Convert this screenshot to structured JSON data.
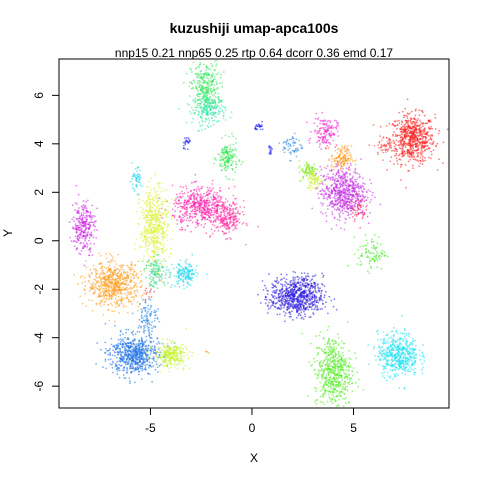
{
  "chart_data": {
    "type": "scatter",
    "title": "kuzushiji umap-apca100s",
    "subtitle": "nnp15 0.21 nnp65 0.25 rtp 0.64 dcorr 0.36 emd 0.17",
    "xlabel": "X",
    "ylabel": "Y",
    "xlim": [
      -9.5,
      9.7
    ],
    "ylim": [
      -6.9,
      7.5
    ],
    "xticks": [
      -5,
      0,
      5
    ],
    "yticks": [
      -6,
      -4,
      -2,
      0,
      2,
      4,
      6
    ],
    "grid": false,
    "legend": "none",
    "clusters": [
      {
        "color": "#ff1a1a",
        "center": [
          7.9,
          4.2
        ],
        "spread": [
          0.55,
          0.5
        ],
        "size": 650
      },
      {
        "color": "#ff3b3b",
        "center": [
          6.5,
          3.9
        ],
        "spread": [
          0.25,
          0.2
        ],
        "size": 40
      },
      {
        "color": "#33e85a",
        "center": [
          -2.3,
          6.3
        ],
        "spread": [
          0.35,
          0.55
        ],
        "size": 330
      },
      {
        "color": "#2ee6ac",
        "center": [
          -2.1,
          5.4
        ],
        "spread": [
          0.4,
          0.3
        ],
        "size": 180
      },
      {
        "color": "#2ee84d",
        "center": [
          -1.2,
          3.4
        ],
        "spread": [
          0.25,
          0.35
        ],
        "size": 160
      },
      {
        "color": "#f21bd0",
        "center": [
          3.6,
          4.5
        ],
        "spread": [
          0.3,
          0.3
        ],
        "size": 140
      },
      {
        "color": "#ff9b1a",
        "center": [
          4.4,
          3.4
        ],
        "spread": [
          0.25,
          0.25
        ],
        "size": 140
      },
      {
        "color": "#2e8be6",
        "center": [
          2.0,
          3.9
        ],
        "spread": [
          0.25,
          0.25
        ],
        "size": 60
      },
      {
        "color": "#7ee81a",
        "center": [
          2.8,
          2.9
        ],
        "spread": [
          0.25,
          0.2
        ],
        "size": 90
      },
      {
        "color": "#d4f22e",
        "center": [
          3.1,
          2.5
        ],
        "spread": [
          0.2,
          0.2
        ],
        "size": 70
      },
      {
        "color": "#c62ee6",
        "center": [
          4.5,
          2.0
        ],
        "spread": [
          0.55,
          0.5
        ],
        "size": 650
      },
      {
        "color": "#ff1a5a",
        "center": [
          5.2,
          1.3
        ],
        "spread": [
          0.2,
          0.25
        ],
        "size": 50
      },
      {
        "color": "#ff1aa8",
        "center": [
          -2.5,
          1.4
        ],
        "spread": [
          0.7,
          0.4
        ],
        "size": 520
      },
      {
        "color": "#ff2ea0",
        "center": [
          -1.2,
          0.9
        ],
        "spread": [
          0.35,
          0.35
        ],
        "size": 220
      },
      {
        "color": "#d8f22e",
        "center": [
          -4.8,
          0.6
        ],
        "spread": [
          0.35,
          0.8
        ],
        "size": 520
      },
      {
        "color": "#d01ae6",
        "center": [
          -8.3,
          0.6
        ],
        "spread": [
          0.28,
          0.55
        ],
        "size": 260
      },
      {
        "color": "#1acfe6",
        "center": [
          -5.7,
          2.5
        ],
        "spread": [
          0.15,
          0.25
        ],
        "size": 50
      },
      {
        "color": "#ff9b1a",
        "center": [
          -6.8,
          -1.8
        ],
        "spread": [
          0.65,
          0.45
        ],
        "size": 650
      },
      {
        "color": "#1ad8f0",
        "center": [
          -3.3,
          -1.4
        ],
        "spread": [
          0.3,
          0.25
        ],
        "size": 160
      },
      {
        "color": "#2ed88a",
        "center": [
          -4.7,
          -1.3
        ],
        "spread": [
          0.3,
          0.3
        ],
        "size": 120
      },
      {
        "color": "#1a7ee6",
        "center": [
          -5.1,
          -3.1
        ],
        "spread": [
          0.25,
          0.4
        ],
        "size": 90
      },
      {
        "color": "#1a6ee6",
        "center": [
          -5.8,
          -4.7
        ],
        "spread": [
          0.6,
          0.4
        ],
        "size": 650
      },
      {
        "color": "#c4f22e",
        "center": [
          -4.0,
          -4.7
        ],
        "spread": [
          0.4,
          0.25
        ],
        "size": 280
      },
      {
        "color": "#2a1adf",
        "center": [
          2.2,
          -2.3
        ],
        "spread": [
          0.65,
          0.4
        ],
        "size": 750
      },
      {
        "color": "#3de81a",
        "center": [
          5.9,
          -0.5
        ],
        "spread": [
          0.35,
          0.35
        ],
        "size": 90
      },
      {
        "color": "#4ded1a",
        "center": [
          4.0,
          -5.4
        ],
        "spread": [
          0.45,
          0.75
        ],
        "size": 560
      },
      {
        "color": "#1ae2f2",
        "center": [
          7.2,
          -4.7
        ],
        "spread": [
          0.5,
          0.45
        ],
        "size": 520
      },
      {
        "color": "#1a1aff",
        "center": [
          -3.2,
          4.1
        ],
        "spread": [
          0.12,
          0.12
        ],
        "size": 25
      },
      {
        "color": "#1a1aff",
        "center": [
          0.4,
          4.7
        ],
        "spread": [
          0.12,
          0.08
        ],
        "size": 25
      },
      {
        "color": "#1a1aff",
        "center": [
          0.9,
          3.7
        ],
        "spread": [
          0.1,
          0.08
        ],
        "size": 15
      },
      {
        "color": "#ff9b1a",
        "center": [
          -2.2,
          -4.6
        ],
        "spread": [
          0.05,
          0.05
        ],
        "size": 4
      },
      {
        "color": "#ff1a1a",
        "center": [
          -5.0,
          -2.2
        ],
        "spread": [
          0.15,
          0.15
        ],
        "size": 10
      }
    ]
  }
}
